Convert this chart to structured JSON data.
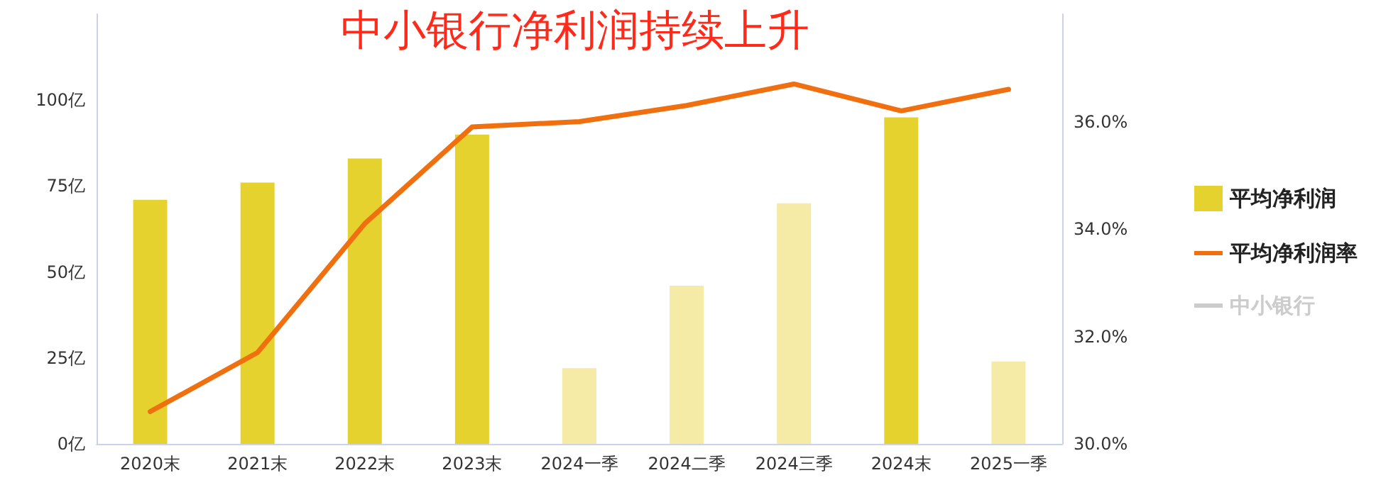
{
  "chart_data": {
    "type": "bar",
    "title": "中小银行净利润持续上升",
    "categories": [
      "2020末",
      "2021末",
      "2022末",
      "2023末",
      "2024一季",
      "2024二季",
      "2024三季",
      "2024末",
      "2025一季"
    ],
    "series": [
      {
        "name": "平均净利润",
        "color": "#e6d22e",
        "colors": [
          "#e6d22e",
          "#e6d22e",
          "#e6d22e",
          "#e6d22e",
          "#f5eaa6",
          "#f5eaa6",
          "#f5eaa6",
          "#e6d22e",
          "#f5eaa6"
        ],
        "values": [
          71,
          76,
          83,
          90,
          22,
          46,
          70,
          95,
          24
        ]
      },
      {
        "name": "平均净利润率",
        "type": "line",
        "axis": "y2",
        "color": "#f07010",
        "values": [
          30.6,
          31.7,
          34.1,
          35.9,
          36.0,
          36.3,
          36.7,
          36.2,
          36.6
        ]
      },
      {
        "name": "中小银行",
        "type": "line",
        "color": "#cccccc",
        "values": [
          null,
          null,
          null,
          null,
          null,
          null,
          null,
          null,
          null
        ]
      }
    ],
    "ylim": [
      0,
      125
    ],
    "yticks": [
      {
        "value": 0,
        "label": "0亿"
      },
      {
        "value": 25,
        "label": "25亿"
      },
      {
        "value": 50,
        "label": "50亿"
      },
      {
        "value": 75,
        "label": "75亿"
      },
      {
        "value": 100,
        "label": "100亿"
      }
    ],
    "y2lim": [
      30,
      38
    ],
    "y2ticks": [
      {
        "value": 30,
        "label": "30.0%"
      },
      {
        "value": 32,
        "label": "32.0%"
      },
      {
        "value": 34,
        "label": "34.0%"
      },
      {
        "value": 36,
        "label": "36.0%"
      }
    ],
    "grid": false,
    "legend": "right",
    "marker": "none",
    "line_style": "solid"
  }
}
